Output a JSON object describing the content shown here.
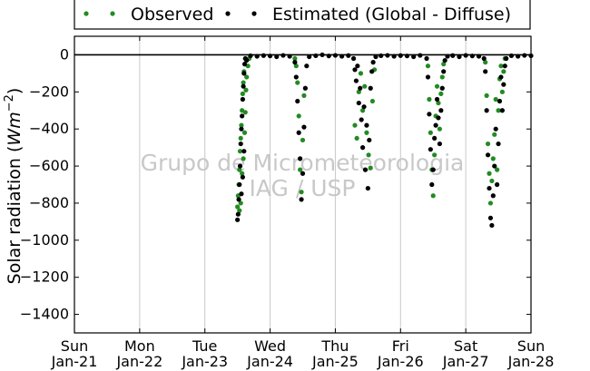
{
  "watermark": [
    "Grupo de Micrometeorologia",
    "IAG / USP"
  ],
  "chart_data": {
    "type": "scatter",
    "ylabel": "Solar radiation (Wm^-2)",
    "ylim": [
      -1500,
      100
    ],
    "xlim": [
      0,
      7
    ],
    "x_unit": "days since Sun Jan-21",
    "y_ticks": [
      0,
      -200,
      -400,
      -600,
      -800,
      -1000,
      -1200,
      -1400
    ],
    "x_ticks": [
      {
        "x": 0,
        "day": "Sun",
        "date": "Jan-21"
      },
      {
        "x": 1,
        "day": "Mon",
        "date": "Jan-22"
      },
      {
        "x": 2,
        "day": "Tue",
        "date": "Jan-23"
      },
      {
        "x": 3,
        "day": "Wed",
        "date": "Jan-24"
      },
      {
        "x": 4,
        "day": "Thu",
        "date": "Jan-25"
      },
      {
        "x": 5,
        "day": "Fri",
        "date": "Jan-26"
      },
      {
        "x": 6,
        "day": "Sat",
        "date": "Jan-27"
      },
      {
        "x": 7,
        "day": "Sun",
        "date": "Jan-28"
      }
    ],
    "grid": "vertical",
    "legend_placement": "top",
    "series": [
      {
        "name": "Observed",
        "color": "#228b22",
        "points": [
          [
            2.5,
            -820
          ],
          [
            2.51,
            -760
          ],
          [
            2.52,
            -700
          ],
          [
            2.53,
            -620
          ],
          [
            2.54,
            -520
          ],
          [
            2.55,
            -450
          ],
          [
            2.56,
            -380
          ],
          [
            2.57,
            -300
          ],
          [
            2.58,
            -210
          ],
          [
            2.59,
            -150
          ],
          [
            2.6,
            -90
          ],
          [
            2.53,
            -840
          ],
          [
            2.55,
            -800
          ],
          [
            2.57,
            -640
          ],
          [
            2.59,
            -560
          ],
          [
            2.61,
            -420
          ],
          [
            2.62,
            -310
          ],
          [
            2.63,
            -190
          ],
          [
            2.64,
            -120
          ],
          [
            2.66,
            -60
          ],
          [
            2.68,
            -20
          ],
          [
            3.38,
            -20
          ],
          [
            3.4,
            -60
          ],
          [
            3.42,
            -150
          ],
          [
            3.44,
            -330
          ],
          [
            3.46,
            -620
          ],
          [
            3.48,
            -740
          ],
          [
            3.5,
            -460
          ],
          [
            3.52,
            -220
          ],
          [
            4.3,
            -380
          ],
          [
            4.33,
            -450
          ],
          [
            4.36,
            -200
          ],
          [
            4.39,
            -100
          ],
          [
            4.42,
            -300
          ],
          [
            4.45,
            -170
          ],
          [
            4.48,
            -420
          ],
          [
            4.51,
            -540
          ],
          [
            4.54,
            -610
          ],
          [
            4.57,
            -250
          ],
          [
            4.6,
            -80
          ],
          [
            5.42,
            -60
          ],
          [
            5.44,
            -240
          ],
          [
            5.46,
            -420
          ],
          [
            5.48,
            -620
          ],
          [
            5.5,
            -760
          ],
          [
            5.52,
            -540
          ],
          [
            5.54,
            -330
          ],
          [
            5.56,
            -170
          ],
          [
            5.58,
            -260
          ],
          [
            5.6,
            -400
          ],
          [
            5.62,
            -210
          ],
          [
            5.64,
            -120
          ],
          [
            5.66,
            -50
          ],
          [
            6.3,
            -40
          ],
          [
            6.32,
            -220
          ],
          [
            6.34,
            -480
          ],
          [
            6.36,
            -640
          ],
          [
            6.38,
            -800
          ],
          [
            6.4,
            -680
          ],
          [
            6.42,
            -560
          ],
          [
            6.44,
            -430
          ],
          [
            6.46,
            -240
          ],
          [
            6.48,
            -620
          ],
          [
            6.5,
            -300
          ],
          [
            6.52,
            -130
          ],
          [
            6.54,
            -60
          ],
          [
            6.56,
            -200
          ],
          [
            6.58,
            -90
          ],
          [
            6.6,
            -20
          ]
        ]
      },
      {
        "name": "Estimated (Global - Diffuse)",
        "color": "#000000",
        "points": [
          [
            2.5,
            -890
          ],
          [
            2.51,
            -860
          ],
          [
            2.52,
            -780
          ],
          [
            2.53,
            -700
          ],
          [
            2.54,
            -600
          ],
          [
            2.55,
            -480
          ],
          [
            2.56,
            -400
          ],
          [
            2.57,
            -330
          ],
          [
            2.58,
            -240
          ],
          [
            2.59,
            -170
          ],
          [
            2.6,
            -100
          ],
          [
            2.61,
            -50
          ],
          [
            2.62,
            -20
          ],
          [
            2.56,
            -750
          ],
          [
            2.58,
            -660
          ],
          [
            2.6,
            -520
          ],
          [
            2.64,
            -30
          ],
          [
            2.7,
            -5
          ],
          [
            2.8,
            -8
          ],
          [
            2.9,
            -4
          ],
          [
            3.0,
            -6
          ],
          [
            3.1,
            -10
          ],
          [
            3.2,
            -3
          ],
          [
            3.3,
            -8
          ],
          [
            3.38,
            -40
          ],
          [
            3.4,
            -120
          ],
          [
            3.42,
            -250
          ],
          [
            3.44,
            -420
          ],
          [
            3.46,
            -560
          ],
          [
            3.48,
            -780
          ],
          [
            3.5,
            -640
          ],
          [
            3.52,
            -390
          ],
          [
            3.54,
            -180
          ],
          [
            3.56,
            -60
          ],
          [
            3.6,
            -10
          ],
          [
            3.7,
            -5
          ],
          [
            3.8,
            0
          ],
          [
            3.9,
            -6
          ],
          [
            4.0,
            -3
          ],
          [
            4.1,
            -8
          ],
          [
            4.2,
            -4
          ],
          [
            4.28,
            -20
          ],
          [
            4.3,
            -80
          ],
          [
            4.32,
            -140
          ],
          [
            4.34,
            -60
          ],
          [
            4.36,
            -260
          ],
          [
            4.38,
            -180
          ],
          [
            4.4,
            -350
          ],
          [
            4.42,
            -500
          ],
          [
            4.44,
            -280
          ],
          [
            4.46,
            -620
          ],
          [
            4.48,
            -380
          ],
          [
            4.5,
            -720
          ],
          [
            4.52,
            -460
          ],
          [
            4.54,
            -180
          ],
          [
            4.56,
            -90
          ],
          [
            4.58,
            -40
          ],
          [
            4.62,
            -10
          ],
          [
            4.7,
            -5
          ],
          [
            4.8,
            -3
          ],
          [
            4.9,
            -8
          ],
          [
            5.0,
            -4
          ],
          [
            5.1,
            -6
          ],
          [
            5.2,
            -10
          ],
          [
            5.3,
            -3
          ],
          [
            5.4,
            -20
          ],
          [
            5.42,
            -120
          ],
          [
            5.44,
            -320
          ],
          [
            5.46,
            -510
          ],
          [
            5.48,
            -700
          ],
          [
            5.5,
            -620
          ],
          [
            5.52,
            -450
          ],
          [
            5.54,
            -380
          ],
          [
            5.56,
            -240
          ],
          [
            5.58,
            -340
          ],
          [
            5.6,
            -480
          ],
          [
            5.62,
            -300
          ],
          [
            5.64,
            -180
          ],
          [
            5.66,
            -90
          ],
          [
            5.68,
            -30
          ],
          [
            5.72,
            -8
          ],
          [
            5.8,
            -4
          ],
          [
            5.9,
            -10
          ],
          [
            6.0,
            -3
          ],
          [
            6.1,
            -6
          ],
          [
            6.2,
            -8
          ],
          [
            6.28,
            -20
          ],
          [
            6.3,
            -90
          ],
          [
            6.32,
            -300
          ],
          [
            6.34,
            -540
          ],
          [
            6.36,
            -720
          ],
          [
            6.38,
            -880
          ],
          [
            6.4,
            -920
          ],
          [
            6.42,
            -760
          ],
          [
            6.44,
            -600
          ],
          [
            6.46,
            -400
          ],
          [
            6.48,
            -700
          ],
          [
            6.5,
            -480
          ],
          [
            6.52,
            -250
          ],
          [
            6.54,
            -120
          ],
          [
            6.56,
            -300
          ],
          [
            6.58,
            -160
          ],
          [
            6.6,
            -60
          ],
          [
            6.62,
            -20
          ],
          [
            6.7,
            -5
          ],
          [
            6.8,
            -8
          ],
          [
            6.9,
            -3
          ],
          [
            7.0,
            -5
          ]
        ]
      }
    ]
  }
}
